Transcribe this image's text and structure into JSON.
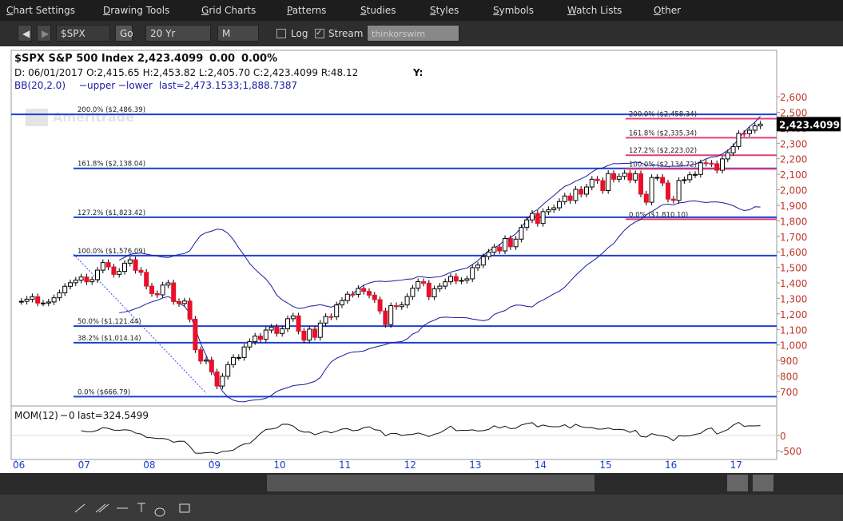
{
  "menu": [
    "Chart Settings",
    "Drawing Tools",
    "Grid Charts",
    "Patterns",
    "Studies",
    "Styles",
    "Symbols",
    "Watch Lists",
    "Other"
  ],
  "toolbar": {
    "symbol": "$SPX",
    "go": "Go",
    "period": "20 Yr",
    "interval": "M",
    "log": "Log",
    "stream": "Stream",
    "brand": "thinkorswim"
  },
  "chart_data": {
    "type": "candlestick",
    "watermark": "Ameritrade",
    "header": {
      "symbol": "$SPX S&P 500 Index",
      "price": "2,423.4099",
      "change": "0.00",
      "pct": "0.00%",
      "ohlc": "D: 06/01/2017 O:2,415.65 H:2,453.82 L:2,405.70 C:2,423.4099 R:48.12",
      "y": "Y:",
      "bb": "BB(20,2.0)",
      "bb_upper": "upper",
      "bb_lower": "lower",
      "bb_last": "last=2,473.1533;1,888.7387",
      "mom": "MOM(12)",
      "mom_zero": "0",
      "mom_last": "last=324.5499"
    },
    "x_labels": [
      "06",
      "07",
      "08",
      "09",
      "10",
      "11",
      "12",
      "13",
      "14",
      "15",
      "16",
      "17"
    ],
    "closes": [
      1280,
      1281,
      1295,
      1311,
      1270,
      1270,
      1277,
      1304,
      1336,
      1378,
      1401,
      1418,
      1438,
      1407,
      1421,
      1482,
      1531,
      1503,
      1455,
      1474,
      1527,
      1549,
      1481,
      1468,
      1379,
      1331,
      1323,
      1386,
      1400,
      1280,
      1267,
      1283,
      1166,
      969,
      896,
      903,
      826,
      735,
      798,
      873,
      919,
      919,
      987,
      1021,
      1057,
      1036,
      1096,
      1115,
      1074,
      1104,
      1169,
      1187,
      1089,
      1031,
      1102,
      1049,
      1141,
      1183,
      1181,
      1258,
      1286,
      1327,
      1326,
      1364,
      1345,
      1321,
      1292,
      1219,
      1131,
      1253,
      1247,
      1258,
      1312,
      1366,
      1408,
      1398,
      1310,
      1362,
      1379,
      1407,
      1441,
      1412,
      1416,
      1426,
      1498,
      1515,
      1569,
      1598,
      1631,
      1606,
      1686,
      1633,
      1682,
      1757,
      1806,
      1848,
      1783,
      1859,
      1872,
      1884,
      1924,
      1960,
      1931,
      2003,
      1972,
      2018,
      2068,
      2059,
      1995,
      2105,
      2068,
      2086,
      2107,
      2063,
      2104,
      1972,
      1920,
      2079,
      2080,
      2044,
      1940,
      1932,
      2060,
      2065,
      2097,
      2099,
      2174,
      2171,
      2168,
      2126,
      2199,
      2239,
      2279,
      2364,
      2363,
      2384,
      2412,
      2423.41
    ],
    "up_color": "#ffffff",
    "down_color": "#e8102a",
    "band_color": "#1a1aa0",
    "ylim": [
      612,
      2899
    ],
    "yticks": [
      700,
      800,
      900,
      {
        "value": 1000,
        "label": "1,000"
      },
      {
        "value": 1100,
        "label": "1,100"
      },
      {
        "value": 1200,
        "label": "1,200"
      },
      {
        "value": 1300,
        "label": "1,300"
      },
      {
        "value": 1400,
        "label": "1,400"
      },
      {
        "value": 1500,
        "label": "1,500"
      },
      {
        "value": 1600,
        "label": "1,600"
      },
      {
        "value": 1700,
        "label": "1,700"
      },
      {
        "value": 1800,
        "label": "1,800"
      },
      {
        "value": 1900,
        "label": "1,900"
      },
      {
        "value": 2000,
        "label": "2,000"
      },
      {
        "value": 2100,
        "label": "2,100"
      },
      {
        "value": 2200,
        "label": "2,200"
      },
      {
        "value": 2300,
        "label": "2,300"
      },
      {
        "value": 2400,
        "label": "2,400"
      },
      {
        "value": 2500,
        "label": "2,500"
      },
      {
        "value": 2600,
        "label": "2,600"
      }
    ],
    "mom_ylim": [
      -711,
      868
    ],
    "mom_yticks": [
      0,
      -500
    ],
    "fib_left_color": "#1f3fd0",
    "fib_right_color": "#e0407a",
    "fib_left": [
      {
        "value": 2486.39,
        "label": "200.0% ($2,486.39)"
      },
      {
        "value": 2138.04,
        "label": "161.8% ($2,138.04)"
      },
      {
        "value": 1823.42,
        "label": "127.2% ($1,823.42)"
      },
      {
        "value": 1576.09,
        "label": "100.0% ($1,576.09)"
      },
      {
        "value": 1121.44,
        "label": "50.0% ($1,121.44)"
      },
      {
        "value": 1014.14,
        "label": "38.2% ($1,014.14)"
      },
      {
        "value": 666.79,
        "label": "0.0% ($666.79)"
      }
    ],
    "fib_right": [
      {
        "value": 2458.34,
        "label": "200.0% ($2,458.34)"
      },
      {
        "value": 2335.34,
        "label": "161.8% ($2,335.34)"
      },
      {
        "value": 2223.02,
        "label": "127.2% ($2,223.02)"
      },
      {
        "value": 2134.72,
        "label": "100.0% ($2,134.72)"
      },
      {
        "value": 1810.1,
        "label": "0.0% ($1,810.10)"
      }
    ]
  }
}
